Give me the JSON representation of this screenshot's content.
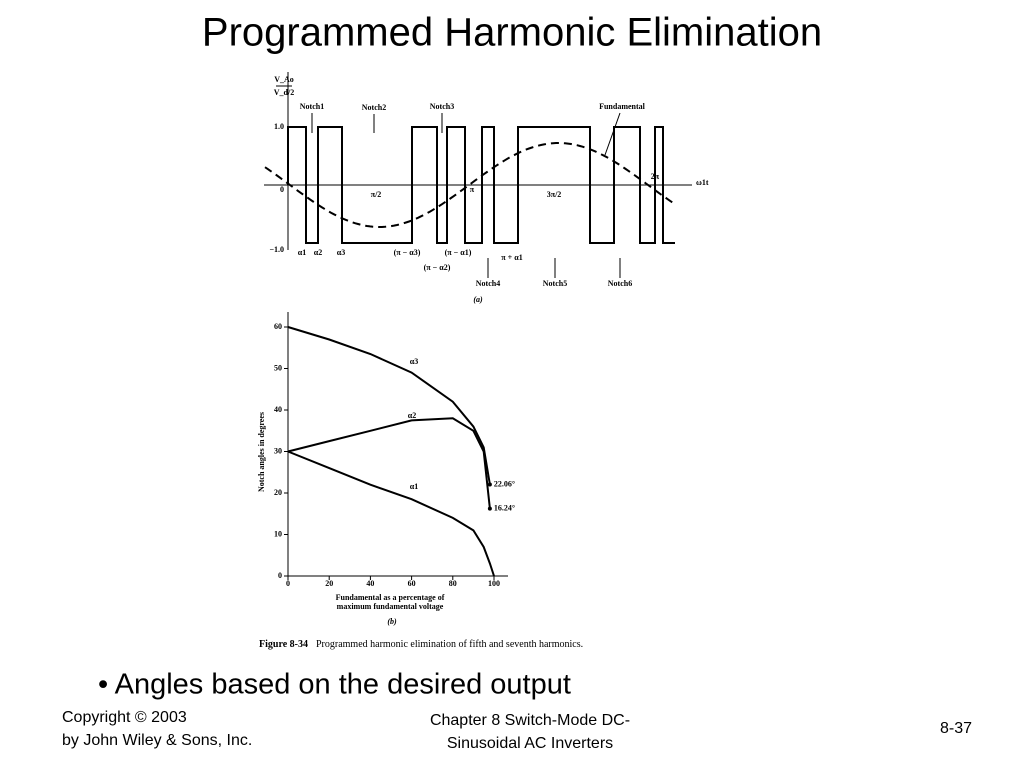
{
  "header": {
    "title": "Programmed Harmonic Elimination"
  },
  "figure_a": {
    "y_label_top": "V_Ao",
    "y_label_bottom": "V_d/2",
    "yticks": [
      "1.0",
      "0",
      "−1.0"
    ],
    "x_axis": "ω1t",
    "notches": [
      "Notch1",
      "Notch2",
      "Notch3",
      "Notch4",
      "Notch5",
      "Notch6"
    ],
    "fundamental": "Fundamental",
    "x_marks": [
      "π/2",
      "π",
      "3π/2",
      "2π"
    ],
    "angles": [
      "α1",
      "α2",
      "α3",
      "(π − α3)",
      "(π − α1)",
      "(π − α2)",
      "π + α1"
    ],
    "panel": "(a)"
  },
  "chart_data": {
    "type": "line",
    "ylabel": "Notch angles in degrees",
    "xlabel": [
      "Fundamental as a percentage of",
      "maximum fundamental voltage"
    ],
    "panel": "(b)",
    "x": [
      0,
      20,
      40,
      60,
      80,
      90,
      95,
      98,
      100
    ],
    "xlim": [
      0,
      100
    ],
    "xticks": [
      0,
      20,
      40,
      60,
      80,
      100
    ],
    "ylim": [
      0,
      60
    ],
    "yticks": [
      0,
      10,
      20,
      30,
      40,
      50,
      60
    ],
    "series": [
      {
        "name": "α3",
        "color": "#000000",
        "values": [
          60,
          57,
          53.5,
          49,
          42,
          36,
          31,
          22.06,
          null
        ]
      },
      {
        "name": "α2",
        "color": "#000000",
        "values": [
          30,
          32.5,
          35,
          37.5,
          38,
          35,
          30,
          16.24,
          null
        ]
      },
      {
        "name": "α1",
        "color": "#000000",
        "values": [
          30,
          26,
          22,
          18.5,
          14,
          11,
          7,
          3,
          0
        ]
      }
    ],
    "annotations": [
      "22.06°",
      "16.24°"
    ]
  },
  "caption": {
    "label": "Figure 8-34",
    "text": "Programmed harmonic elimination of fifth and seventh harmonics."
  },
  "bullet": "• Angles based on the desired output",
  "footer": {
    "left": [
      "Copyright © 2003",
      "by John Wiley & Sons, Inc."
    ],
    "center": [
      "Chapter 8 Switch-Mode DC-",
      "Sinusoidal AC Inverters"
    ],
    "right": "8-37"
  }
}
